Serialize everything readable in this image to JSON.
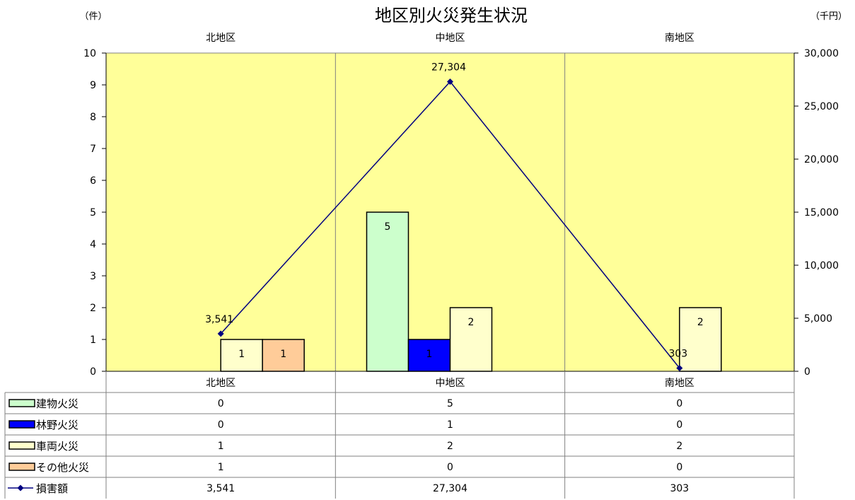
{
  "chart_data": {
    "type": "bar",
    "title": "地区別火災発生状況",
    "y_left_unit": "（件）",
    "y_right_unit": "（千円）",
    "categories": [
      "北地区",
      "中地区",
      "南地区"
    ],
    "y_left_ticks": [
      "0",
      "1",
      "2",
      "3",
      "4",
      "5",
      "6",
      "7",
      "8",
      "9",
      "10"
    ],
    "y_right_ticks": [
      "0",
      "5,000",
      "10,000",
      "15,000",
      "20,000",
      "25,000",
      "30,000"
    ],
    "ylim_left": [
      0,
      10
    ],
    "ylim_right": [
      0,
      30000
    ],
    "plot_background": "#FFFF99",
    "legend_placement": "data-table",
    "series": [
      {
        "name": "建物火災",
        "color": "#CCFFCC",
        "axis": "left",
        "values": [
          0,
          5,
          0
        ],
        "labels": [
          "0",
          "5",
          "0"
        ]
      },
      {
        "name": "林野火災",
        "color": "#0000FF",
        "axis": "left",
        "values": [
          0,
          1,
          0
        ],
        "labels": [
          "0",
          "1",
          "0"
        ]
      },
      {
        "name": "車両火災",
        "color": "#FFFFCC",
        "axis": "left",
        "values": [
          1,
          2,
          2
        ],
        "labels": [
          "1",
          "2",
          "2"
        ]
      },
      {
        "name": "その他火災",
        "color": "#FFCC99",
        "axis": "left",
        "values": [
          1,
          0,
          0
        ],
        "labels": [
          "1",
          "0",
          "0"
        ]
      }
    ],
    "line_series": {
      "name": "損害額",
      "color": "#000080",
      "axis": "right",
      "marker": "diamond",
      "values": [
        3541,
        27304,
        303
      ],
      "labels": [
        "3,541",
        "27,304",
        "303"
      ]
    }
  }
}
